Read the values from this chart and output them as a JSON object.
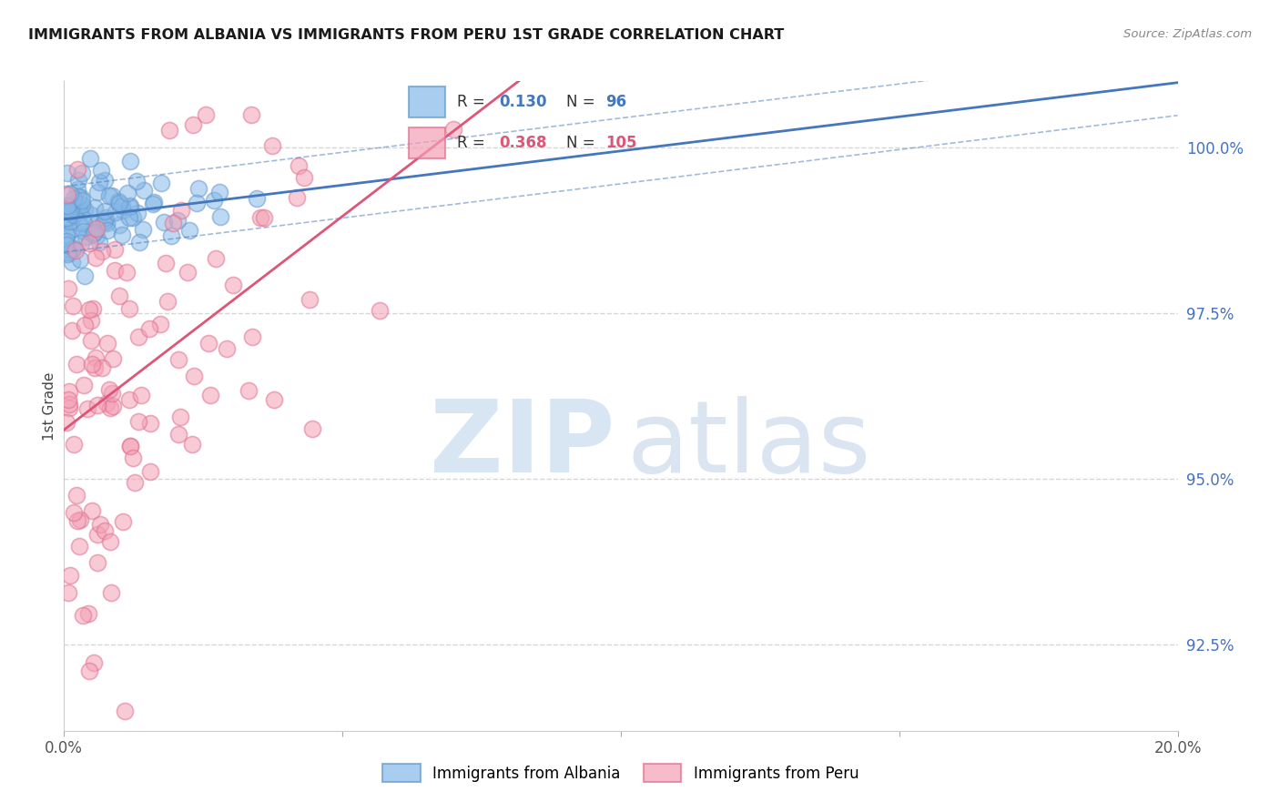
{
  "title": "IMMIGRANTS FROM ALBANIA VS IMMIGRANTS FROM PERU 1ST GRADE CORRELATION CHART",
  "source": "Source: ZipAtlas.com",
  "ylabel": "1st Grade",
  "x_min": 0.0,
  "x_max": 20.0,
  "y_min": 91.2,
  "y_max": 101.0,
  "y_ticks": [
    92.5,
    95.0,
    97.5,
    100.0
  ],
  "albania_color": "#85b8e8",
  "peru_color": "#f4a0b5",
  "albania_edge_color": "#6699cc",
  "peru_edge_color": "#e07090",
  "albania_line_color": "#4477bb",
  "peru_line_color": "#dd5577",
  "albania_R": 0.13,
  "albania_N": 96,
  "peru_R": 0.368,
  "peru_N": 105,
  "background_color": "#ffffff",
  "grid_color": "#cccccc",
  "title_fontsize": 11.5,
  "right_axis_color": "#4472c4",
  "watermark_zip_color": "#c8dcf0",
  "watermark_atlas_color": "#b8cce4"
}
